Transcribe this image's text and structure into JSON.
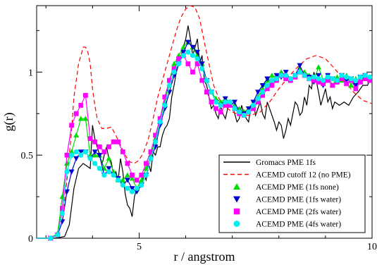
{
  "chart_data": {
    "type": "line",
    "xlabel": "r / angstrom",
    "ylabel": "g(r)",
    "xlim": [
      2.8,
      10
    ],
    "ylim": [
      0,
      1.4
    ],
    "xticks": [
      {
        "v": 5,
        "label": "5"
      },
      {
        "v": 10,
        "label": "10"
      }
    ],
    "yticks": [
      {
        "v": 0,
        "label": "0"
      },
      {
        "v": 0.5,
        "label": "0.5"
      },
      {
        "v": 1,
        "label": "1"
      }
    ],
    "legend_position": "bottom-right",
    "series": [
      {
        "name": "Gromacs PME 1fs",
        "color": "#000000",
        "dash": "",
        "marker": "none",
        "x": [
          2.8,
          3.0,
          3.2,
          3.4,
          3.5,
          3.6,
          3.7,
          3.8,
          3.9,
          3.95,
          4.0,
          4.05,
          4.1,
          4.15,
          4.2,
          4.25,
          4.3,
          4.35,
          4.4,
          4.45,
          4.5,
          4.55,
          4.6,
          4.65,
          4.7,
          4.75,
          4.8,
          4.85,
          4.9,
          4.95,
          5.0,
          5.05,
          5.1,
          5.15,
          5.2,
          5.25,
          5.3,
          5.35,
          5.4,
          5.45,
          5.5,
          5.55,
          5.6,
          5.65,
          5.7,
          5.75,
          5.8,
          5.85,
          5.9,
          5.95,
          6.0,
          6.05,
          6.1,
          6.15,
          6.2,
          6.25,
          6.3,
          6.35,
          6.4,
          6.45,
          6.5,
          6.55,
          6.6,
          6.65,
          6.7,
          6.75,
          6.8,
          6.85,
          6.9,
          6.95,
          7.0,
          7.05,
          7.1,
          7.15,
          7.2,
          7.25,
          7.3,
          7.35,
          7.4,
          7.45,
          7.5,
          7.55,
          7.6,
          7.65,
          7.7,
          7.75,
          7.8,
          7.85,
          7.9,
          7.95,
          8.0,
          8.05,
          8.1,
          8.15,
          8.2,
          8.25,
          8.3,
          8.35,
          8.4,
          8.45,
          8.5,
          8.55,
          8.6,
          8.65,
          8.7,
          8.75,
          8.8,
          8.85,
          8.9,
          8.95,
          9.0,
          9.05,
          9.1,
          9.15,
          9.2,
          9.3,
          9.4,
          9.5,
          9.6,
          9.7,
          9.8,
          9.9,
          10.0
        ],
        "y": [
          0,
          0,
          0,
          0.01,
          0.08,
          0.3,
          0.42,
          0.45,
          0.43,
          0.42,
          0.68,
          0.6,
          0.55,
          0.5,
          0.44,
          0.5,
          0.55,
          0.48,
          0.46,
          0.38,
          0.4,
          0.35,
          0.48,
          0.4,
          0.27,
          0.2,
          0.18,
          0.13,
          0.25,
          0.3,
          0.3,
          0.32,
          0.38,
          0.35,
          0.45,
          0.4,
          0.52,
          0.5,
          0.55,
          0.55,
          0.62,
          0.66,
          0.68,
          0.72,
          0.85,
          0.92,
          1.0,
          1.05,
          1.1,
          1.15,
          1.2,
          1.28,
          1.2,
          1.1,
          1.15,
          1.2,
          1.05,
          1.1,
          0.95,
          0.92,
          0.85,
          0.78,
          0.8,
          0.75,
          0.72,
          0.8,
          0.75,
          0.72,
          0.78,
          0.82,
          0.8,
          0.75,
          0.7,
          0.72,
          0.8,
          0.75,
          0.72,
          0.7,
          0.8,
          0.82,
          0.74,
          0.78,
          0.82,
          0.75,
          0.72,
          0.82,
          0.78,
          0.74,
          0.7,
          0.65,
          0.7,
          0.68,
          0.6,
          0.65,
          0.72,
          0.68,
          0.75,
          0.82,
          0.8,
          0.74,
          0.76,
          0.85,
          0.8,
          0.92,
          0.9,
          1.0,
          0.95,
          0.88,
          0.8,
          0.85,
          0.9,
          0.82,
          0.85,
          0.78,
          0.82,
          0.8,
          0.82,
          0.8,
          0.85,
          0.88,
          0.92,
          0.92,
          0.98
        ]
      },
      {
        "name": "ACEMD cutoff 12 (no PME)",
        "color": "#ff0000",
        "dash": "6,4",
        "marker": "none",
        "x": [
          2.8,
          3.1,
          3.25,
          3.35,
          3.45,
          3.55,
          3.6,
          3.7,
          3.8,
          3.85,
          3.9,
          3.95,
          4.0,
          4.05,
          4.1,
          4.2,
          4.3,
          4.4,
          4.5,
          4.6,
          4.7,
          4.8,
          4.9,
          5.0,
          5.1,
          5.2,
          5.3,
          5.4,
          5.5,
          5.6,
          5.7,
          5.8,
          5.9,
          6.0,
          6.1,
          6.2,
          6.3,
          6.4,
          6.5,
          6.6,
          6.7,
          6.8,
          6.9,
          7.0,
          7.2,
          7.4,
          7.6,
          7.8,
          8.0,
          8.2,
          8.4,
          8.6,
          8.8,
          9.0,
          9.2,
          9.4,
          9.6,
          9.8,
          10.0
        ],
        "y": [
          0,
          0,
          0.02,
          0.1,
          0.35,
          0.65,
          0.85,
          1.05,
          1.15,
          1.15,
          1.12,
          1.05,
          0.9,
          0.8,
          0.72,
          0.66,
          0.66,
          0.67,
          0.62,
          0.56,
          0.5,
          0.46,
          0.45,
          0.47,
          0.52,
          0.6,
          0.72,
          0.85,
          0.95,
          1.05,
          1.15,
          1.25,
          1.33,
          1.38,
          1.4,
          1.39,
          1.32,
          1.18,
          1.05,
          0.92,
          0.85,
          0.8,
          0.78,
          0.76,
          0.74,
          0.74,
          0.76,
          0.82,
          0.9,
          0.97,
          1.03,
          1.08,
          1.1,
          1.08,
          1.02,
          0.95,
          0.88,
          0.83,
          0.81
        ]
      },
      {
        "name": "ACEMD PME (1fs none)",
        "color": "#00dd00",
        "dash": "",
        "marker": "triangle-up",
        "x": [
          2.8,
          2.95,
          3.1,
          3.25,
          3.35,
          3.45,
          3.55,
          3.65,
          3.75,
          3.85,
          3.95,
          4.05,
          4.15,
          4.25,
          4.35,
          4.45,
          4.55,
          4.65,
          4.75,
          4.85,
          4.95,
          5.05,
          5.15,
          5.25,
          5.35,
          5.45,
          5.55,
          5.65,
          5.75,
          5.85,
          5.95,
          6.05,
          6.15,
          6.25,
          6.35,
          6.45,
          6.55,
          6.65,
          6.75,
          6.85,
          6.95,
          7.05,
          7.15,
          7.25,
          7.35,
          7.45,
          7.55,
          7.65,
          7.75,
          7.85,
          7.95,
          8.05,
          8.15,
          8.25,
          8.35,
          8.45,
          8.55,
          8.65,
          8.75,
          8.85,
          8.95,
          9.05,
          9.15,
          9.25,
          9.35,
          9.45,
          9.55,
          9.65,
          9.75,
          9.85,
          9.95
        ],
        "y": [
          0,
          0,
          0,
          0.03,
          0.25,
          0.45,
          0.52,
          0.62,
          0.72,
          0.72,
          0.5,
          0.5,
          0.5,
          0.42,
          0.48,
          0.4,
          0.35,
          0.35,
          0.38,
          0.36,
          0.3,
          0.35,
          0.42,
          0.5,
          0.6,
          0.72,
          0.82,
          0.95,
          1.05,
          1.1,
          1.15,
          1.18,
          1.15,
          1.1,
          1.05,
          0.95,
          0.88,
          0.84,
          0.82,
          0.84,
          0.82,
          0.8,
          0.78,
          0.76,
          0.78,
          0.8,
          0.85,
          0.9,
          0.95,
          0.98,
          0.97,
          1.0,
          0.98,
          0.95,
          0.98,
          1.02,
          1.0,
          0.98,
          0.95,
          1.03,
          0.95,
          0.98,
          0.92,
          0.97,
          0.95,
          0.98,
          0.92,
          0.96,
          0.94,
          0.98,
          0.96
        ]
      },
      {
        "name": "ACEMD PME (1fs water)",
        "color": "#0000cc",
        "dash": "",
        "marker": "triangle-down",
        "x": [
          2.8,
          2.95,
          3.1,
          3.25,
          3.35,
          3.45,
          3.55,
          3.65,
          3.75,
          3.85,
          3.95,
          4.05,
          4.15,
          4.25,
          4.35,
          4.45,
          4.55,
          4.65,
          4.75,
          4.85,
          4.95,
          5.05,
          5.15,
          5.25,
          5.35,
          5.45,
          5.55,
          5.65,
          5.75,
          5.85,
          5.95,
          6.05,
          6.15,
          6.25,
          6.35,
          6.45,
          6.55,
          6.65,
          6.75,
          6.85,
          6.95,
          7.05,
          7.15,
          7.25,
          7.35,
          7.45,
          7.55,
          7.65,
          7.75,
          7.85,
          7.95,
          8.05,
          8.15,
          8.25,
          8.35,
          8.45,
          8.55,
          8.65,
          8.75,
          8.85,
          8.95,
          9.05,
          9.15,
          9.25,
          9.35,
          9.45,
          9.55,
          9.65,
          9.75,
          9.85,
          9.95
        ],
        "y": [
          0,
          0,
          0,
          0.02,
          0.1,
          0.28,
          0.4,
          0.48,
          0.52,
          0.52,
          0.48,
          0.52,
          0.5,
          0.38,
          0.42,
          0.38,
          0.36,
          0.32,
          0.35,
          0.3,
          0.28,
          0.32,
          0.38,
          0.48,
          0.55,
          0.68,
          0.78,
          0.88,
          0.98,
          1.05,
          1.12,
          1.18,
          1.15,
          1.12,
          1.05,
          0.95,
          0.88,
          0.82,
          0.8,
          0.84,
          0.8,
          0.82,
          0.76,
          0.75,
          0.78,
          0.82,
          0.88,
          0.92,
          0.96,
          0.94,
          0.98,
          0.97,
          1.0,
          0.95,
          0.98,
          1.04,
          0.98,
          0.97,
          0.94,
          0.98,
          0.92,
          0.98,
          0.96,
          0.94,
          0.98,
          0.95,
          0.96,
          0.92,
          0.97,
          0.98,
          0.96
        ]
      },
      {
        "name": "ACEMD PME (2fs water)",
        "color": "#ff00ff",
        "dash": "",
        "marker": "square",
        "x": [
          2.8,
          2.95,
          3.1,
          3.25,
          3.35,
          3.45,
          3.55,
          3.65,
          3.75,
          3.85,
          3.95,
          4.05,
          4.15,
          4.25,
          4.35,
          4.45,
          4.55,
          4.65,
          4.75,
          4.85,
          4.95,
          5.05,
          5.15,
          5.25,
          5.35,
          5.45,
          5.55,
          5.65,
          5.75,
          5.85,
          5.95,
          6.05,
          6.15,
          6.25,
          6.35,
          6.45,
          6.55,
          6.65,
          6.75,
          6.85,
          6.95,
          7.05,
          7.15,
          7.25,
          7.35,
          7.45,
          7.55,
          7.65,
          7.75,
          7.85,
          7.95,
          8.05,
          8.15,
          8.25,
          8.35,
          8.45,
          8.55,
          8.65,
          8.75,
          8.85,
          8.95,
          9.05,
          9.15,
          9.25,
          9.35,
          9.45,
          9.55,
          9.65,
          9.75,
          9.85,
          9.95
        ],
        "y": [
          0,
          0,
          0,
          0.02,
          0.18,
          0.5,
          0.68,
          0.75,
          0.8,
          0.86,
          0.6,
          0.58,
          0.55,
          0.52,
          0.55,
          0.58,
          0.58,
          0.52,
          0.45,
          0.38,
          0.35,
          0.38,
          0.45,
          0.52,
          0.62,
          0.72,
          0.85,
          0.95,
          1.02,
          1.08,
          1.1,
          1.05,
          1.0,
          1.05,
          0.95,
          0.88,
          0.82,
          0.78,
          0.76,
          0.8,
          0.8,
          0.78,
          0.75,
          0.74,
          0.76,
          0.78,
          0.82,
          0.86,
          0.9,
          0.92,
          0.95,
          0.98,
          0.96,
          0.95,
          0.97,
          1.0,
          0.98,
          0.96,
          0.95,
          0.94,
          0.93,
          0.95,
          0.92,
          0.94,
          0.96,
          0.93,
          0.95,
          0.9,
          0.94,
          0.96,
          0.95
        ]
      },
      {
        "name": "ACEMD PME (4fs water)",
        "color": "#00eeee",
        "dash": "",
        "marker": "circle",
        "x": [
          2.8,
          2.95,
          3.1,
          3.25,
          3.35,
          3.45,
          3.55,
          3.65,
          3.75,
          3.85,
          3.95,
          4.05,
          4.15,
          4.25,
          4.35,
          4.45,
          4.55,
          4.65,
          4.75,
          4.85,
          4.95,
          5.05,
          5.15,
          5.25,
          5.35,
          5.45,
          5.55,
          5.65,
          5.75,
          5.85,
          5.95,
          6.05,
          6.15,
          6.25,
          6.35,
          6.45,
          6.55,
          6.65,
          6.75,
          6.85,
          6.95,
          7.05,
          7.15,
          7.25,
          7.35,
          7.45,
          7.55,
          7.65,
          7.75,
          7.85,
          7.95,
          8.05,
          8.15,
          8.25,
          8.35,
          8.45,
          8.55,
          8.65,
          8.75,
          8.85,
          8.95,
          9.05,
          9.15,
          9.25,
          9.35,
          9.45,
          9.55,
          9.65,
          9.75,
          9.85,
          9.95
        ],
        "y": [
          0,
          0,
          0,
          0.02,
          0.15,
          0.4,
          0.5,
          0.52,
          0.5,
          0.52,
          0.48,
          0.45,
          0.42,
          0.38,
          0.4,
          0.38,
          0.35,
          0.32,
          0.3,
          0.28,
          0.3,
          0.32,
          0.38,
          0.48,
          0.58,
          0.7,
          0.8,
          0.92,
          1.0,
          1.05,
          1.1,
          1.12,
          1.1,
          1.08,
          1.02,
          0.95,
          0.88,
          0.82,
          0.8,
          0.82,
          0.82,
          0.78,
          0.76,
          0.74,
          0.76,
          0.8,
          0.84,
          0.88,
          0.92,
          0.95,
          0.96,
          0.98,
          0.98,
          0.96,
          0.98,
          1.0,
          0.98,
          0.96,
          0.97,
          0.96,
          0.95,
          0.97,
          0.96,
          0.95,
          0.98,
          0.97,
          0.96,
          0.95,
          0.97,
          0.98,
          0.97
        ]
      }
    ]
  }
}
